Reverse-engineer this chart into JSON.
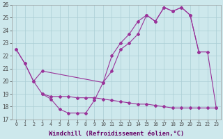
{
  "xlabel": "Windchill (Refroidissement éolien,°C)",
  "background_color": "#cde8ec",
  "grid_color": "#aacdd4",
  "line_color": "#993399",
  "x_hours": [
    0,
    1,
    2,
    3,
    4,
    5,
    6,
    7,
    8,
    9,
    10,
    11,
    12,
    13,
    14,
    15,
    16,
    17,
    18,
    19,
    20,
    21,
    22,
    23
  ],
  "line1_x": [
    0,
    1,
    2,
    3,
    10,
    11,
    12,
    13,
    14,
    15,
    16,
    17,
    18,
    19,
    20,
    21
  ],
  "line1_y": [
    22.5,
    21.4,
    20.0,
    20.8,
    19.9,
    20.8,
    22.5,
    23.0,
    23.7,
    25.2,
    24.7,
    25.8,
    25.5,
    25.8,
    25.2,
    22.3
  ],
  "line2_x": [
    0,
    1,
    2,
    3,
    4,
    5,
    6,
    7,
    8,
    9,
    10,
    11,
    12,
    13,
    14,
    15,
    16,
    17,
    18,
    19,
    20,
    21,
    22,
    23
  ],
  "line2_y": [
    22.5,
    21.4,
    20.0,
    19.0,
    18.6,
    17.8,
    17.5,
    17.5,
    17.5,
    18.5,
    19.9,
    22.0,
    23.0,
    23.7,
    24.7,
    25.2,
    24.7,
    25.8,
    25.5,
    25.8,
    25.2,
    22.3,
    22.3,
    17.9
  ],
  "line3_x": [
    3,
    4,
    5,
    6,
    7,
    8,
    9,
    10,
    11,
    12,
    13,
    14,
    15,
    16,
    17,
    18,
    19,
    20,
    21,
    22,
    23
  ],
  "line3_y": [
    19.0,
    18.8,
    18.8,
    18.8,
    18.7,
    18.7,
    18.7,
    18.6,
    18.5,
    18.4,
    18.3,
    18.2,
    18.2,
    18.1,
    18.0,
    17.9,
    17.9,
    17.9,
    17.9,
    17.9,
    17.9
  ],
  "ylim": [
    17,
    26
  ],
  "yticks": [
    17,
    18,
    19,
    20,
    21,
    22,
    23,
    24,
    25,
    26
  ],
  "xlim": [
    -0.5,
    23.5
  ],
  "figsize": [
    3.2,
    2.0
  ],
  "dpi": 100
}
